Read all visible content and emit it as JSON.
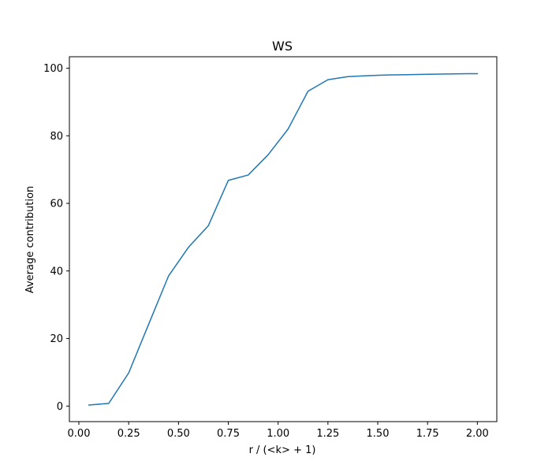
{
  "chart_data": {
    "type": "line",
    "title": "WS",
    "xlabel": "r / (<k> + 1)",
    "ylabel": "Average contribution",
    "xlim": [
      -0.0475,
      2.0975
    ],
    "ylim": [
      -4.6,
      103.4
    ],
    "xticks": [
      0.0,
      0.25,
      0.5,
      0.75,
      1.0,
      1.25,
      1.5,
      1.75,
      2.0
    ],
    "xtick_labels": [
      "0.00",
      "0.25",
      "0.50",
      "0.75",
      "1.00",
      "1.25",
      "1.50",
      "1.75",
      "2.00"
    ],
    "yticks": [
      0,
      20,
      40,
      60,
      80,
      100
    ],
    "ytick_labels": [
      "0",
      "20",
      "40",
      "60",
      "80",
      "100"
    ],
    "grid": false,
    "series": [
      {
        "color": "#1f77b4",
        "x": [
          0.05,
          0.15,
          0.25,
          0.35,
          0.45,
          0.55,
          0.65,
          0.75,
          0.85,
          0.95,
          1.05,
          1.15,
          1.25,
          1.35,
          1.45,
          1.55,
          1.65,
          1.75,
          1.85,
          1.95,
          2.0
        ],
        "y": [
          0.3,
          0.8,
          9.8,
          24.2,
          38.5,
          47.0,
          53.4,
          66.8,
          68.4,
          74.4,
          82.0,
          93.2,
          96.6,
          97.5,
          97.8,
          98.0,
          98.1,
          98.2,
          98.3,
          98.4,
          98.4
        ]
      }
    ]
  }
}
